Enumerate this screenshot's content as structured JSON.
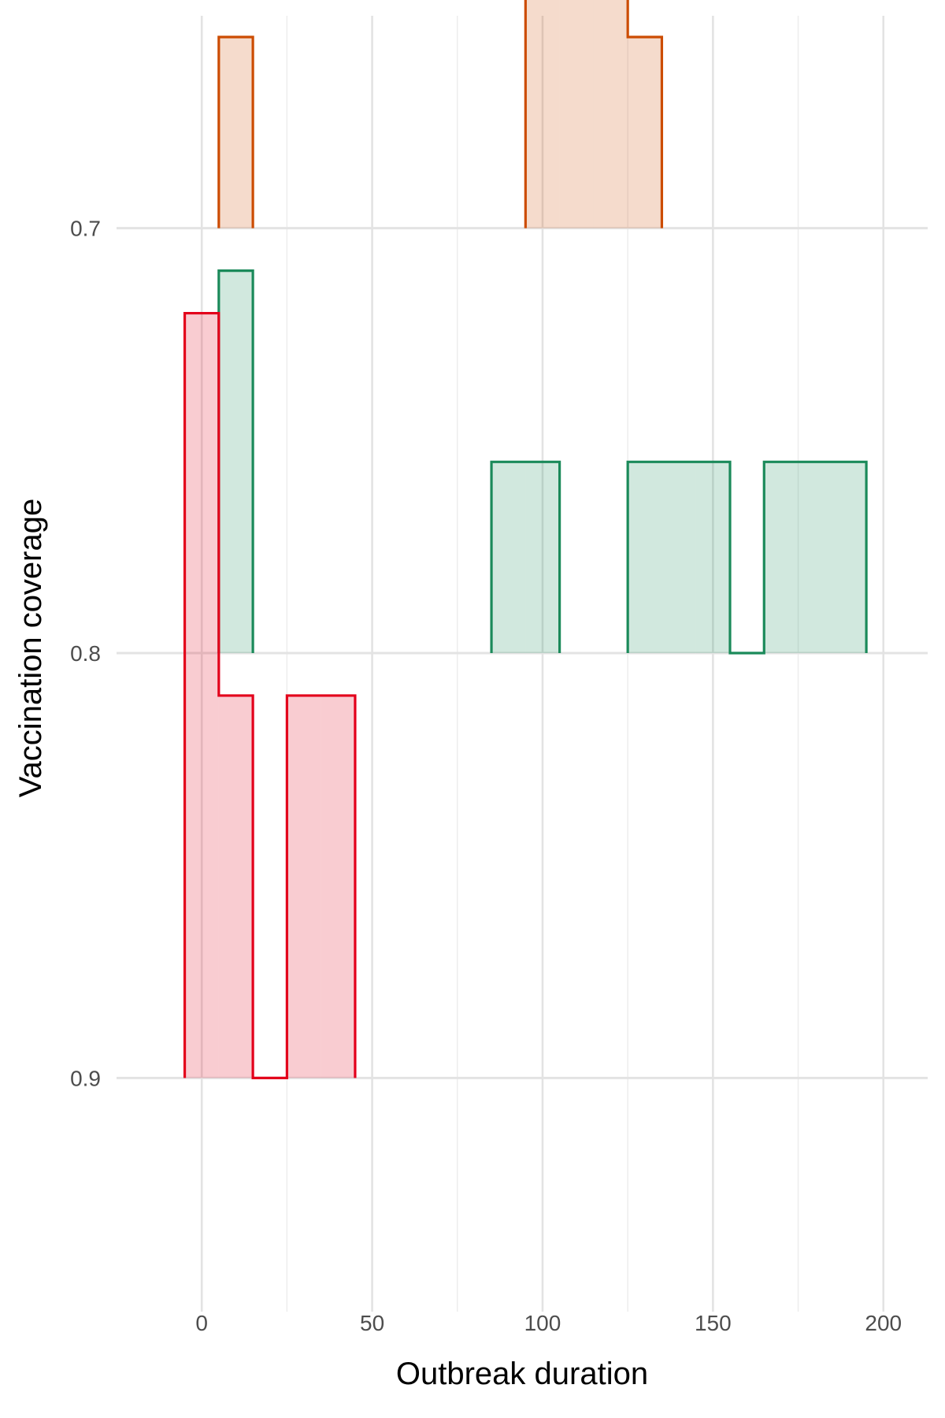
{
  "chart_data": {
    "type": "ridgeline-histogram",
    "xlabel": "Outbreak duration",
    "ylabel": "Vaccination coverage",
    "xlim": [
      -25,
      213
    ],
    "ylim": [
      0.65,
      0.955
    ],
    "x_ticks": [
      0,
      50,
      100,
      150,
      200
    ],
    "y_ticks": [
      0.7,
      0.8,
      0.9
    ],
    "bin_width": 10,
    "bin_edges": [
      -5,
      5,
      15,
      25,
      35,
      45,
      55,
      65,
      75,
      85,
      95,
      105,
      115,
      125,
      135,
      145,
      155,
      165,
      175,
      185,
      195
    ],
    "ridges": [
      {
        "coverage": 0.7,
        "color": "#cc4c02",
        "fill": "rgba(204,76,2,0.20)",
        "bins": [
          {
            "start": 5,
            "end": 15,
            "height": 0.045
          },
          {
            "start": 95,
            "end": 105,
            "height": 0.09
          },
          {
            "start": 105,
            "end": 115,
            "height": 0.18
          },
          {
            "start": 115,
            "end": 125,
            "height": 0.09
          },
          {
            "start": 125,
            "end": 135,
            "height": 0.045
          }
        ]
      },
      {
        "coverage": 0.8,
        "color": "#1b8a5a",
        "fill": "rgba(27,138,90,0.20)",
        "bins": [
          {
            "start": 5,
            "end": 15,
            "height": 0.09
          },
          {
            "start": 85,
            "end": 95,
            "height": 0.045
          },
          {
            "start": 95,
            "end": 105,
            "height": 0.045
          },
          {
            "start": 125,
            "end": 135,
            "height": 0.045
          },
          {
            "start": 135,
            "end": 145,
            "height": 0.045
          },
          {
            "start": 145,
            "end": 155,
            "height": 0.045
          },
          {
            "start": 155,
            "end": 165,
            "height": 0.0
          },
          {
            "start": 165,
            "end": 175,
            "height": 0.045
          },
          {
            "start": 175,
            "end": 185,
            "height": 0.045
          },
          {
            "start": 185,
            "end": 195,
            "height": 0.045
          }
        ]
      },
      {
        "coverage": 0.9,
        "color": "#e3001b",
        "fill": "rgba(227,0,27,0.20)",
        "bins": [
          {
            "start": -5,
            "end": 5,
            "height": 0.18
          },
          {
            "start": 5,
            "end": 15,
            "height": 0.09
          },
          {
            "start": 15,
            "end": 25,
            "height": 0.0
          },
          {
            "start": 25,
            "end": 35,
            "height": 0.09
          },
          {
            "start": 35,
            "end": 45,
            "height": 0.09
          }
        ]
      }
    ],
    "grid": true,
    "legend": "none"
  }
}
